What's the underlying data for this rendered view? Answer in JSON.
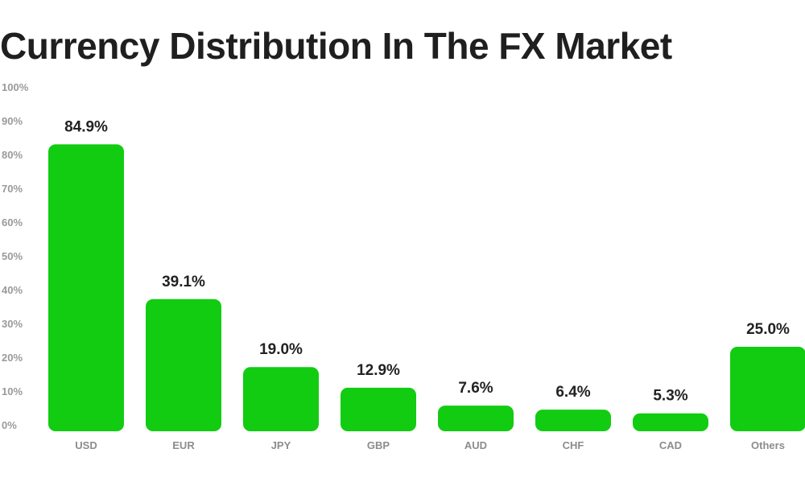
{
  "chart_data": {
    "type": "bar",
    "title": "Currency Distribution In The FX Market",
    "xlabel": "",
    "ylabel": "",
    "ylim": [
      0,
      100
    ],
    "yticks": [
      "0%",
      "10%",
      "20%",
      "30%",
      "40%",
      "50%",
      "60%",
      "70%",
      "80%",
      "90%",
      "100%"
    ],
    "categories": [
      "USD",
      "EUR",
      "JPY",
      "GBP",
      "AUD",
      "CHF",
      "CAD",
      "Others"
    ],
    "values": [
      84.9,
      39.1,
      19.0,
      12.9,
      7.6,
      6.4,
      5.3,
      25.0
    ],
    "value_labels": [
      "84.9%",
      "39.1%",
      "19.0%",
      "12.9%",
      "7.6%",
      "6.4%",
      "5.3%",
      "25.0%"
    ],
    "bar_color": "#12cc12",
    "grid": false,
    "legend": "none"
  }
}
